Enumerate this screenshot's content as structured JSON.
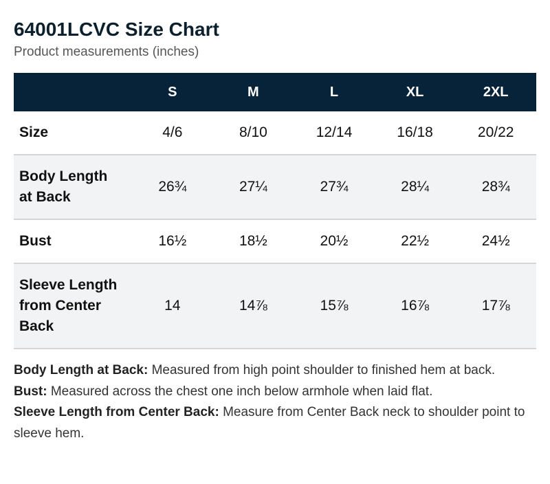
{
  "title": "64001LCVC Size Chart",
  "subtitle": "Product measurements (inches)",
  "table": {
    "corner": "",
    "columns": [
      "S",
      "M",
      "L",
      "XL",
      "2XL"
    ],
    "rows": [
      {
        "label": "Size",
        "values": [
          "4/6",
          "8/10",
          "12/14",
          "16/18",
          "20/22"
        ]
      },
      {
        "label": "Body Length at Back",
        "values": [
          "26¾",
          "27¼",
          "27¾",
          "28¼",
          "28¾"
        ]
      },
      {
        "label": "Bust",
        "values": [
          "16½",
          "18½",
          "20½",
          "22½",
          "24½"
        ]
      },
      {
        "label": "Sleeve Length from Center Back",
        "values": [
          "14",
          "14⅞",
          "15⅞",
          "16⅞",
          "17⅞"
        ]
      }
    ]
  },
  "notes": [
    {
      "term": "Body Length at Back:",
      "text": " Measured from high point shoulder to finished hem at back."
    },
    {
      "term": "Bust:",
      "text": " Measured across the chest one inch below armhole when laid flat."
    },
    {
      "term": "Sleeve Length from Center Back:",
      "text": " Measure from Center Back neck to shoulder point to sleeve hem."
    }
  ],
  "colors": {
    "header_bg": "#06233a",
    "header_text": "#ffffff",
    "stripe_bg": "#f2f3f4"
  }
}
